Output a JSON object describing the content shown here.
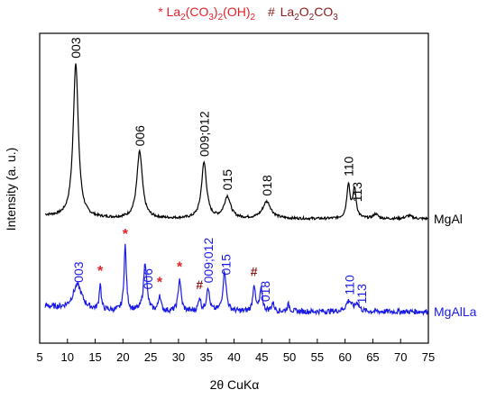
{
  "chart_data": {
    "type": "line",
    "xlabel": "2θ CuKα",
    "ylabel": "Intensity (a. u.)",
    "xlim": [
      5,
      75
    ],
    "x_ticks": [
      5,
      10,
      15,
      20,
      25,
      30,
      35,
      40,
      45,
      50,
      55,
      60,
      65,
      70,
      75
    ],
    "y_ticks_shown": false,
    "legend": {
      "star_symbol": "*",
      "star_label": "La₂(CO₃)₂(OH)₂",
      "hash_symbol": "#",
      "hash_label": "La₂O₂CO₃"
    },
    "colors": {
      "MgAl": "#000000",
      "MgAlLa": "#1a1ae6",
      "star": "#e21f26",
      "hash": "#8b1a1a"
    },
    "series": [
      {
        "name": "MgAl",
        "baseline": 0.46,
        "noise": 0.008,
        "peaks": [
          {
            "x": 11.5,
            "h": 1.0,
            "w": 0.55
          },
          {
            "x": 23.0,
            "h": 0.43,
            "w": 0.6
          },
          {
            "x": 34.6,
            "h": 0.36,
            "w": 0.55
          },
          {
            "x": 38.8,
            "h": 0.14,
            "w": 0.7
          },
          {
            "x": 45.9,
            "h": 0.11,
            "w": 0.9
          },
          {
            "x": 60.6,
            "h": 0.22,
            "w": 0.35
          },
          {
            "x": 61.7,
            "h": 0.19,
            "w": 0.35
          },
          {
            "x": 65.5,
            "h": 0.03,
            "w": 0.5
          },
          {
            "x": 71.5,
            "h": 0.02,
            "w": 0.7
          }
        ],
        "labels": [
          {
            "x": 11.5,
            "text": "003"
          },
          {
            "x": 23.0,
            "text": "006"
          },
          {
            "x": 34.6,
            "text": "009;012"
          },
          {
            "x": 38.8,
            "text": "015"
          },
          {
            "x": 45.9,
            "text": "018"
          },
          {
            "x": 60.6,
            "text": "110"
          },
          {
            "x": 62.2,
            "text": "113"
          }
        ],
        "trace_label": "MgAl"
      },
      {
        "name": "MgAlLa",
        "baseline": 0.0,
        "noise": 0.01,
        "peaks": [
          {
            "x": 11.8,
            "h": 0.09,
            "w": 1.0
          },
          {
            "x": 15.9,
            "h": 0.1,
            "w": 0.2
          },
          {
            "x": 20.4,
            "h": 0.24,
            "w": 0.25
          },
          {
            "x": 24.0,
            "h": 0.18,
            "w": 0.35
          },
          {
            "x": 26.6,
            "h": 0.06,
            "w": 0.25
          },
          {
            "x": 30.2,
            "h": 0.12,
            "w": 0.3
          },
          {
            "x": 33.8,
            "h": 0.05,
            "w": 0.25
          },
          {
            "x": 35.3,
            "h": 0.09,
            "w": 0.3
          },
          {
            "x": 38.3,
            "h": 0.15,
            "w": 0.35
          },
          {
            "x": 43.6,
            "h": 0.1,
            "w": 0.25
          },
          {
            "x": 44.9,
            "h": 0.08,
            "w": 0.3
          },
          {
            "x": 47.0,
            "h": 0.03,
            "w": 0.3
          },
          {
            "x": 49.8,
            "h": 0.025,
            "w": 0.3
          },
          {
            "x": 60.7,
            "h": 0.04,
            "w": 0.6
          },
          {
            "x": 62.2,
            "h": 0.03,
            "w": 0.4
          }
        ],
        "labels": [
          {
            "x": 12.0,
            "text": "003"
          },
          {
            "x": 24.5,
            "text": "006"
          },
          {
            "x": 35.4,
            "text": "009;012"
          },
          {
            "x": 38.5,
            "text": "015"
          },
          {
            "x": 45.6,
            "text": "018"
          },
          {
            "x": 60.8,
            "text": "110"
          },
          {
            "x": 63.0,
            "text": "113"
          }
        ],
        "markers": [
          {
            "x": 15.9,
            "symbol": "*"
          },
          {
            "x": 20.4,
            "symbol": "*"
          },
          {
            "x": 26.6,
            "symbol": "*"
          },
          {
            "x": 30.2,
            "symbol": "*"
          },
          {
            "x": 33.8,
            "symbol": "#"
          },
          {
            "x": 43.6,
            "symbol": "#"
          }
        ],
        "trace_label": "MgAlLa"
      }
    ]
  }
}
